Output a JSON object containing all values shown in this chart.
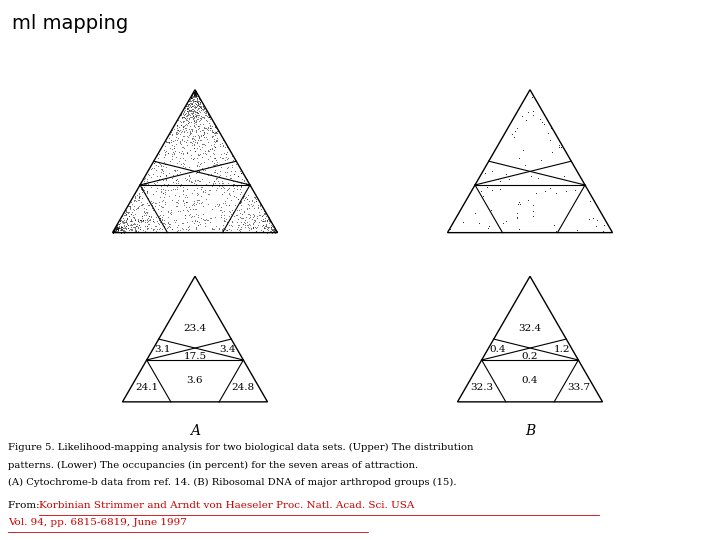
{
  "title": "ml mapping",
  "fig_caption_line1": "Figure 5. Likelihood-mapping analysis for two biological data sets. (Upper) The distribution",
  "fig_caption_line2": "patterns. (Lower) The occupancies (in percent) for the seven areas of attraction.",
  "fig_caption_line3": "(A) Cytochrome-b data from ref. 14. (B) Ribosomal DNA of major arthropod groups (15).",
  "from_prefix": "From: ",
  "from_line": "Korbinian Strimmer and Arndt von Haeseler Proc. Natl. Acad. Sci. USA",
  "from_line2": "Vol. 94, pp. 6815-6819, June 1997",
  "label_A": "A",
  "label_B": "B",
  "A_values": {
    "top": "23.4",
    "left_mid": "3.1",
    "center_mid": "17.5",
    "right_mid": "3.4",
    "bottom_left": "24.1",
    "bottom_center": "3.6",
    "bottom_right": "24.8"
  },
  "B_values": {
    "top": "32.4",
    "left_mid": "0.4",
    "center_mid": "0.2",
    "right_mid": "1.2",
    "bottom_left": "32.3",
    "bottom_center": "0.4",
    "bottom_right": "33.7"
  },
  "bg_color": "#ffffff",
  "text_color": "#000000",
  "link_color": "#cc0000",
  "dot_color_A": "#000000",
  "dot_color_B": "#000000",
  "n_dots_A": 1800,
  "n_dots_B": 80,
  "seed_A": 42,
  "seed_B": 99
}
